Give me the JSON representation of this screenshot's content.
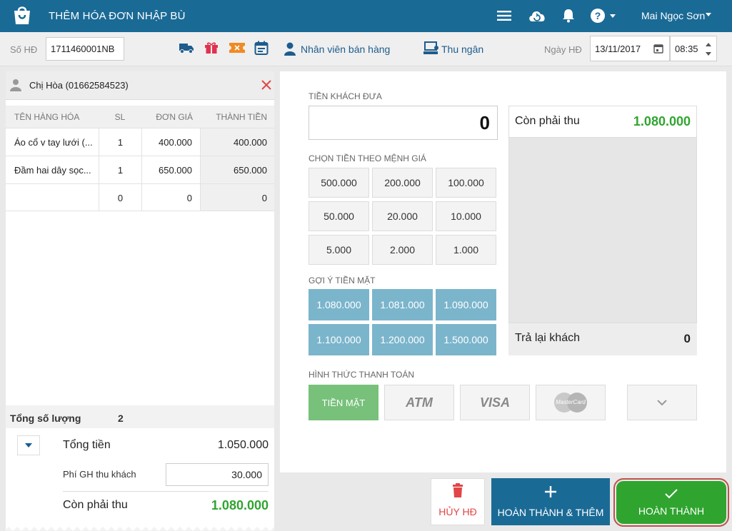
{
  "header": {
    "title": "THÊM HÓA ĐƠN NHẬP BÙ",
    "user_name": "Mai Ngọc Sơn",
    "icons": [
      "logo-icon",
      "menu-icon",
      "cloud-sync-icon",
      "bell-icon",
      "help-icon"
    ]
  },
  "toolbar": {
    "so_hd_label": "Số HĐ",
    "so_hd_value": "1711460001NB",
    "nhan_vien_label": "Nhân viên bán hàng",
    "thu_ngan_label": "Thu ngân",
    "ngay_hd_label": "Ngày HĐ",
    "date_value": "13/11/2017",
    "time_value": "08:35",
    "icons": [
      "truck-icon",
      "gift-icon",
      "coupon-icon",
      "calendar-icon",
      "user-icon",
      "cashier-icon"
    ]
  },
  "customer": {
    "name": "Chị Hòa (01662584523)"
  },
  "items_table": {
    "headers": [
      "TÊN HÀNG HÓA",
      "SL",
      "ĐƠN GIÁ",
      "THÀNH TIỀN"
    ],
    "rows": [
      {
        "name": "Áo cổ v tay lưới (...",
        "qty": "1",
        "price": "400.000",
        "total": "400.000"
      },
      {
        "name": "Đầm hai dây sọc...",
        "qty": "1",
        "price": "650.000",
        "total": "650.000"
      },
      {
        "name": "",
        "qty": "0",
        "price": "0",
        "total": "0"
      }
    ]
  },
  "summary": {
    "tong_so_luong_label": "Tổng số lượng",
    "tong_so_luong_value": "2",
    "tong_tien_label": "Tổng tiền",
    "tong_tien_value": "1.050.000",
    "phi_gh_label": "Phí GH thu khách",
    "phi_gh_value": "30.000",
    "con_phai_thu_label": "Còn phải thu",
    "con_phai_thu_value": "1.080.000"
  },
  "payment": {
    "tien_khach_dua_label": "TIỀN KHÁCH ĐƯA",
    "tien_khach_dua_value": "0",
    "chon_tien_label": "CHỌN TIỀN THEO MỆNH GIÁ",
    "denominations": [
      "500.000",
      "200.000",
      "100.000",
      "50.000",
      "20.000",
      "10.000",
      "5.000",
      "2.000",
      "1.000"
    ],
    "goi_y_label": "GỢI Ý TIỀN MẶT",
    "suggestions": [
      "1.080.000",
      "1.081.000",
      "1.090.000",
      "1.100.000",
      "1.200.000",
      "1.500.000"
    ],
    "con_phai_thu_label": "Còn phải thu",
    "con_phai_thu_value": "1.080.000",
    "tra_lai_label": "Trả lại khách",
    "tra_lai_value": "0",
    "hinh_thuc_label": "HÌNH THỨC THANH TOÁN",
    "methods": {
      "cash": "TIỀN MẶT",
      "atm": "ATM",
      "visa": "VISA",
      "mastercard": "MasterCard"
    }
  },
  "actions": {
    "huy_label": "HỦY HĐ",
    "hoan_thanh_them_label": "HOÀN THÀNH & THÊM",
    "hoan_thanh_label": "HOÀN THÀNH"
  },
  "colors": {
    "header_bg": "#1a6a96",
    "green": "#2fa52f",
    "suggest_blue": "#7bb5cc",
    "cash_green": "#77c17b",
    "danger_red": "#e24545"
  }
}
